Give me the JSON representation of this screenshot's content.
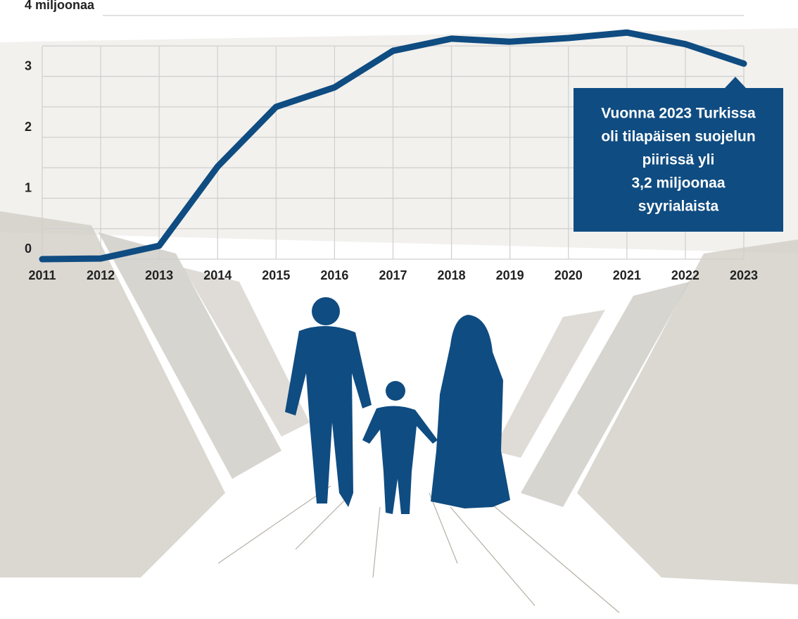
{
  "chart_data": {
    "type": "line",
    "categories": [
      "2011",
      "2012",
      "2013",
      "2014",
      "2015",
      "2016",
      "2017",
      "2018",
      "2019",
      "2020",
      "2021",
      "2022",
      "2023"
    ],
    "series": [
      {
        "name": null,
        "color": "#0f4c81",
        "values": [
          0,
          0.01,
          0.22,
          1.52,
          2.5,
          2.82,
          3.42,
          3.62,
          3.57,
          3.63,
          3.72,
          3.53,
          3.21
        ]
      }
    ],
    "ylim": [
      0,
      4
    ],
    "yticks": [
      0,
      1,
      2,
      3,
      {
        "value": 4,
        "label": "4 miljoonaa"
      }
    ],
    "minor_yticks": [
      0.5,
      1.5,
      2.5,
      3.5
    ],
    "grid": true,
    "annotation": {
      "lines": [
        "Vuonna 2023 Turkissa",
        "oli tilapäisen suojelun",
        "piirissä yli",
        "3,2 miljoonaa",
        "syyrialaista"
      ],
      "color": "#0f4c81"
    }
  }
}
